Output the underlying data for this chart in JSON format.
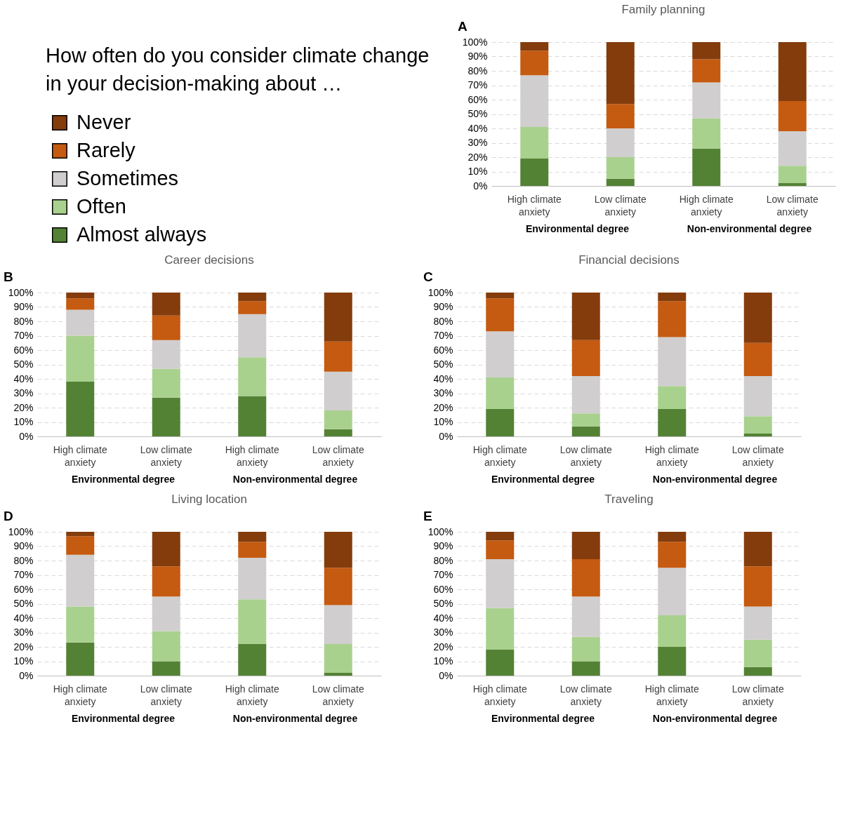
{
  "chart_data": [
    {
      "type": "bar",
      "title": "Family planning",
      "legend_title": "How often do you consider climate change in your decision-making about …",
      "legend": "left",
      "stacked": true,
      "grid": "y",
      "annotations": [
        "A",
        "Environmental degree",
        "Non-environmental degree"
      ],
      "categories": [
        "High climate anxiety",
        "Low climate anxiety",
        "High climate anxiety",
        "Low climate anxiety"
      ],
      "ylim": [
        0,
        100
      ],
      "yticks": [
        {
          "value": 0,
          "label": "0%"
        },
        {
          "value": 10,
          "label": "10%"
        },
        {
          "value": 20,
          "label": "20%"
        },
        {
          "value": 30,
          "label": "30%"
        },
        {
          "value": 40,
          "label": "40%"
        },
        {
          "value": 50,
          "label": "50%"
        },
        {
          "value": 60,
          "label": "60%"
        },
        {
          "value": 70,
          "label": "70%"
        },
        {
          "value": 80,
          "label": "80%"
        },
        {
          "value": 90,
          "label": "90%"
        },
        {
          "value": 100,
          "label": "100%"
        }
      ],
      "series": [
        {
          "name": "Almost always",
          "color": "#548235",
          "values": [
            19,
            5,
            26,
            2
          ]
        },
        {
          "name": "Often",
          "color": "#a9d18e",
          "values": [
            22,
            15,
            21,
            12
          ]
        },
        {
          "name": "Sometimes",
          "color": "#d0cece",
          "values": [
            36,
            20,
            25,
            24
          ]
        },
        {
          "name": "Rarely",
          "color": "#c55a11",
          "values": [
            17,
            17,
            16,
            21
          ]
        },
        {
          "name": "Never",
          "color": "#843c0c",
          "values": [
            6,
            43,
            12,
            41
          ]
        }
      ]
    },
    {
      "type": "bar",
      "title": "Career decisions",
      "stacked": true,
      "grid": "y",
      "annotations": [
        "B",
        "Environmental degree",
        "Non-environmental degree"
      ],
      "categories": [
        "High climate anxiety",
        "Low climate anxiety",
        "High climate anxiety",
        "Low climate anxiety"
      ],
      "ylim": [
        0,
        100
      ],
      "yticks": [
        {
          "value": 0,
          "label": "0%"
        },
        {
          "value": 10,
          "label": "10%"
        },
        {
          "value": 20,
          "label": "20%"
        },
        {
          "value": 30,
          "label": "30%"
        },
        {
          "value": 40,
          "label": "40%"
        },
        {
          "value": 50,
          "label": "50%"
        },
        {
          "value": 60,
          "label": "60%"
        },
        {
          "value": 70,
          "label": "70%"
        },
        {
          "value": 80,
          "label": "80%"
        },
        {
          "value": 90,
          "label": "90%"
        },
        {
          "value": 100,
          "label": "100%"
        }
      ],
      "series": [
        {
          "color": "#548235",
          "values": [
            38,
            27,
            28,
            5
          ]
        },
        {
          "color": "#a9d18e",
          "values": [
            32,
            20,
            27,
            13
          ]
        },
        {
          "color": "#d0cece",
          "values": [
            18,
            20,
            30,
            27
          ]
        },
        {
          "color": "#c55a11",
          "values": [
            8,
            17,
            9,
            21
          ]
        },
        {
          "color": "#843c0c",
          "values": [
            4,
            16,
            6,
            34
          ]
        }
      ]
    },
    {
      "type": "bar",
      "title": "Financial decisions",
      "stacked": true,
      "grid": "y",
      "annotations": [
        "C",
        "Environmental degree",
        "Non-environmental degree"
      ],
      "categories": [
        "High climate anxiety",
        "Low climate anxiety",
        "High climate anxiety",
        "Low climate anxiety"
      ],
      "ylim": [
        0,
        100
      ],
      "yticks": [
        {
          "value": 0,
          "label": "0%"
        },
        {
          "value": 10,
          "label": "10%"
        },
        {
          "value": 20,
          "label": "20%"
        },
        {
          "value": 30,
          "label": "30%"
        },
        {
          "value": 40,
          "label": "40%"
        },
        {
          "value": 50,
          "label": "50%"
        },
        {
          "value": 60,
          "label": "60%"
        },
        {
          "value": 70,
          "label": "70%"
        },
        {
          "value": 80,
          "label": "80%"
        },
        {
          "value": 90,
          "label": "90%"
        },
        {
          "value": 100,
          "label": "100%"
        }
      ],
      "series": [
        {
          "color": "#548235",
          "values": [
            19,
            7,
            19,
            2
          ]
        },
        {
          "color": "#a9d18e",
          "values": [
            22,
            9,
            16,
            12
          ]
        },
        {
          "color": "#d0cece",
          "values": [
            32,
            26,
            34,
            28
          ]
        },
        {
          "color": "#c55a11",
          "values": [
            23,
            25,
            25,
            23
          ]
        },
        {
          "color": "#843c0c",
          "values": [
            4,
            33,
            6,
            35
          ]
        }
      ]
    },
    {
      "type": "bar",
      "title": "Living location",
      "stacked": true,
      "grid": "y",
      "annotations": [
        "D",
        "Environmental degree",
        "Non-environmental degree"
      ],
      "categories": [
        "High climate anxiety",
        "Low climate anxiety",
        "High climate anxiety",
        "Low climate anxiety"
      ],
      "ylim": [
        0,
        100
      ],
      "yticks": [
        {
          "value": 0,
          "label": "0%"
        },
        {
          "value": 10,
          "label": "10%"
        },
        {
          "value": 20,
          "label": "20%"
        },
        {
          "value": 30,
          "label": "30%"
        },
        {
          "value": 40,
          "label": "40%"
        },
        {
          "value": 50,
          "label": "50%"
        },
        {
          "value": 60,
          "label": "60%"
        },
        {
          "value": 70,
          "label": "70%"
        },
        {
          "value": 80,
          "label": "80%"
        },
        {
          "value": 90,
          "label": "90%"
        },
        {
          "value": 100,
          "label": "100%"
        }
      ],
      "series": [
        {
          "color": "#548235",
          "values": [
            23,
            10,
            22,
            2
          ]
        },
        {
          "color": "#a9d18e",
          "values": [
            25,
            21,
            31,
            20
          ]
        },
        {
          "color": "#d0cece",
          "values": [
            36,
            24,
            29,
            27
          ]
        },
        {
          "color": "#c55a11",
          "values": [
            13,
            21,
            11,
            26
          ]
        },
        {
          "color": "#843c0c",
          "values": [
            3,
            24,
            7,
            25
          ]
        }
      ]
    },
    {
      "type": "bar",
      "title": "Traveling",
      "stacked": true,
      "grid": "y",
      "annotations": [
        "E",
        "Environmental degree",
        "Non-environmental degree"
      ],
      "categories": [
        "High climate anxiety",
        "Low climate anxiety",
        "High climate anxiety",
        "Low climate anxiety"
      ],
      "ylim": [
        0,
        100
      ],
      "yticks": [
        {
          "value": 0,
          "label": "0%"
        },
        {
          "value": 10,
          "label": "10%"
        },
        {
          "value": 20,
          "label": "20%"
        },
        {
          "value": 30,
          "label": "30%"
        },
        {
          "value": 40,
          "label": "40%"
        },
        {
          "value": 50,
          "label": "50%"
        },
        {
          "value": 60,
          "label": "60%"
        },
        {
          "value": 70,
          "label": "70%"
        },
        {
          "value": 80,
          "label": "80%"
        },
        {
          "value": 90,
          "label": "90%"
        },
        {
          "value": 100,
          "label": "100%"
        }
      ],
      "series": [
        {
          "color": "#548235",
          "values": [
            18,
            10,
            20,
            6
          ]
        },
        {
          "color": "#a9d18e",
          "values": [
            29,
            17,
            22,
            19
          ]
        },
        {
          "color": "#d0cece",
          "values": [
            34,
            28,
            33,
            23
          ]
        },
        {
          "color": "#c55a11",
          "values": [
            13,
            26,
            18,
            28
          ]
        },
        {
          "color": "#843c0c",
          "values": [
            6,
            19,
            7,
            24
          ]
        }
      ]
    }
  ]
}
